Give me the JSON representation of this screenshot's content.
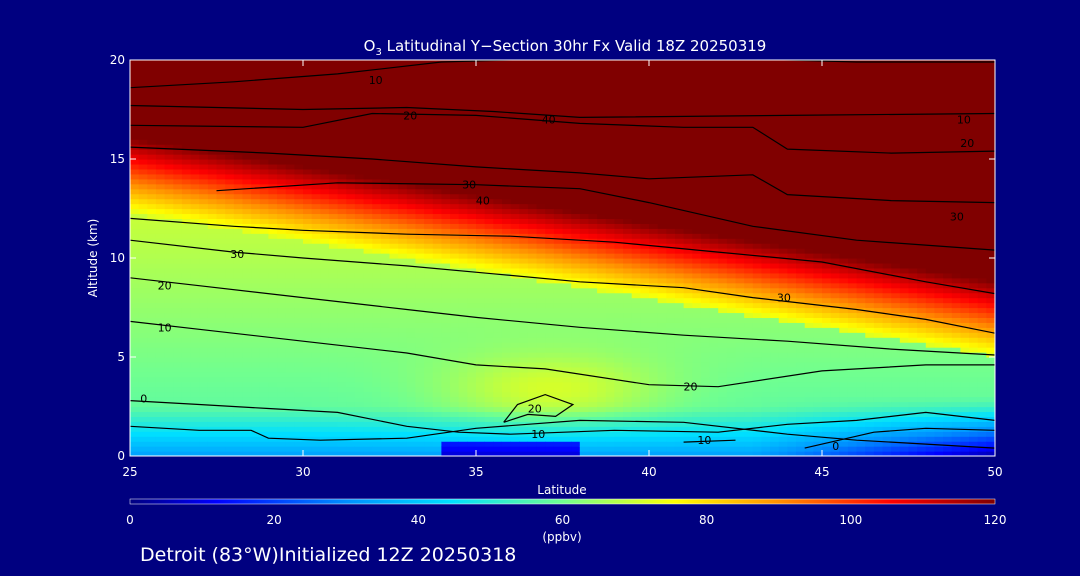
{
  "chart_data": {
    "type": "heatmap",
    "title_main": "O",
    "title_sub": "3",
    "title_rest": " Latitudinal Y−Section 30hr  Fx Valid 18Z 20250319",
    "xlabel": "Latitude",
    "ylabel": "Altitude (km)",
    "xlim": [
      25,
      50
    ],
    "ylim": [
      0,
      20
    ],
    "x_ticks": [
      "25",
      "30",
      "35",
      "40",
      "45",
      "50"
    ],
    "x_tick_values": [
      25,
      30,
      35,
      40,
      45,
      50
    ],
    "y_ticks": [
      "0",
      "5",
      "10",
      "15",
      "20"
    ],
    "y_tick_values": [
      0,
      5,
      10,
      15,
      20
    ],
    "colorbar": {
      "min": 0,
      "max": 120,
      "ticks": [
        "0",
        "20",
        "40",
        "60",
        "80",
        "100",
        "120"
      ],
      "tick_values": [
        0,
        20,
        40,
        60,
        80,
        100,
        120
      ],
      "label": "(ppbv)"
    },
    "contour_labels": [
      {
        "text": "10",
        "x": 32.1,
        "y": 19.0
      },
      {
        "text": "20",
        "x": 33.1,
        "y": 17.2
      },
      {
        "text": "40",
        "x": 37.1,
        "y": 17.0
      },
      {
        "text": "30",
        "x": 34.8,
        "y": 13.7
      },
      {
        "text": "40",
        "x": 35.2,
        "y": 12.9
      },
      {
        "text": "30",
        "x": 28.1,
        "y": 10.2
      },
      {
        "text": "20",
        "x": 26.0,
        "y": 8.6
      },
      {
        "text": "10",
        "x": 26.0,
        "y": 6.5
      },
      {
        "text": "0",
        "x": 25.4,
        "y": 2.9
      },
      {
        "text": "20",
        "x": 36.7,
        "y": 2.4
      },
      {
        "text": "10",
        "x": 36.8,
        "y": 1.1
      },
      {
        "text": "10",
        "x": 41.6,
        "y": 0.8
      },
      {
        "text": "20",
        "x": 41.2,
        "y": 3.5
      },
      {
        "text": "30",
        "x": 43.9,
        "y": 8.0
      },
      {
        "text": "0",
        "x": 45.4,
        "y": 0.5
      },
      {
        "text": "10",
        "x": 49.1,
        "y": 17.0
      },
      {
        "text": "20",
        "x": 49.2,
        "y": 15.8
      },
      {
        "text": "30",
        "x": 48.9,
        "y": 12.1
      }
    ]
  },
  "colors": {
    "background": "#000080",
    "axes": "#ffffff",
    "contour": "#000000"
  },
  "footer": {
    "text": "Detroit (83°W)Initialized 12Z 20250318"
  }
}
